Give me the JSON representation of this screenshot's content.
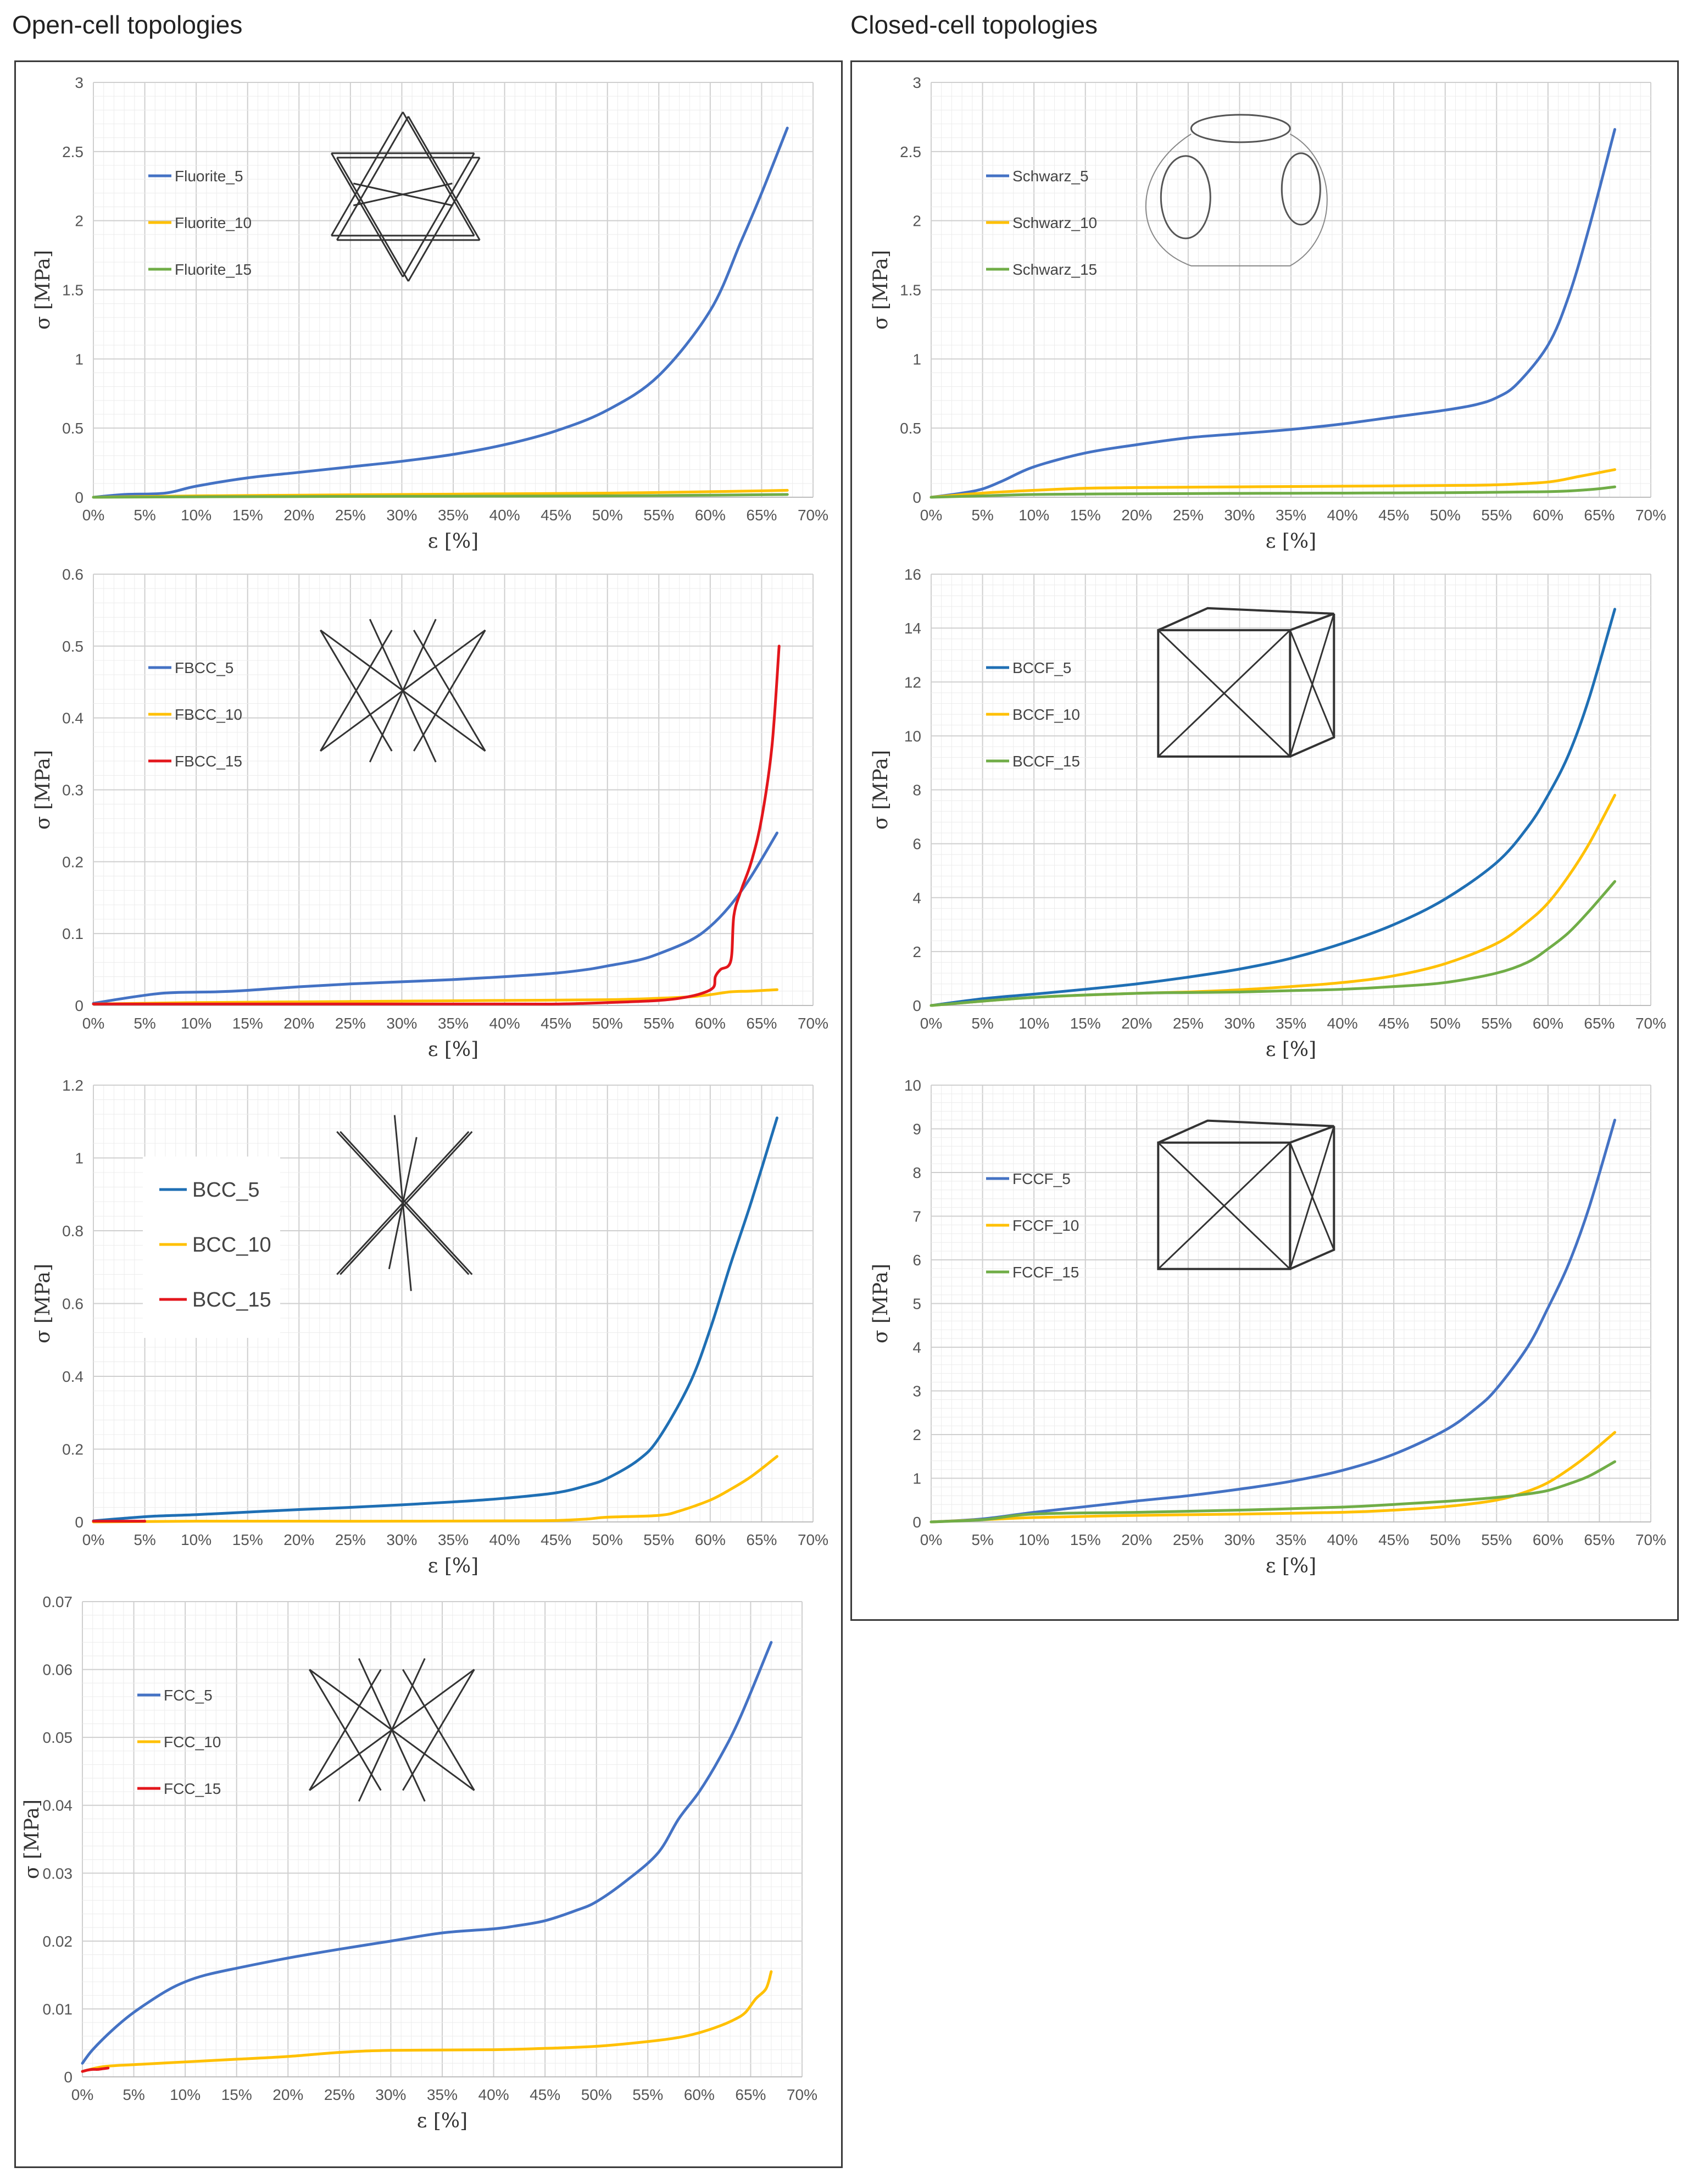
{
  "sections": {
    "open_title": "Open-cell topologies",
    "closed_title": "Closed-cell topologies"
  },
  "colors": {
    "blue": "#4472C4",
    "yellow": "#FFC000",
    "green": "#70AD47",
    "red": "#E3161C",
    "grid": "#e2e2e2"
  },
  "chart_data": [
    {
      "id": "fluorite",
      "type": "line",
      "section": "open",
      "xlabel": "ε [%]",
      "ylabel": "σ [MPa]",
      "xlim": [
        0,
        70
      ],
      "ylim": [
        0,
        3
      ],
      "xticks": [
        "0%",
        "5%",
        "10%",
        "15%",
        "20%",
        "25%",
        "30%",
        "35%",
        "40%",
        "45%",
        "50%",
        "55%",
        "60%",
        "65%",
        "70%"
      ],
      "yticks": [
        "0",
        "0.5",
        "1",
        "1.5",
        "2",
        "2.5",
        "3"
      ],
      "legend_position": "top-left",
      "grid": true,
      "inset": "fluorite-cell",
      "series": [
        {
          "name": "Fluorite_5",
          "color": "#4472C4",
          "x": [
            0,
            3,
            7,
            10,
            15,
            20,
            25,
            30,
            35,
            40,
            45,
            50,
            55,
            60,
            63,
            65,
            67.5
          ],
          "y": [
            0,
            0.02,
            0.03,
            0.08,
            0.14,
            0.18,
            0.22,
            0.26,
            0.31,
            0.38,
            0.48,
            0.63,
            0.88,
            1.35,
            1.85,
            2.2,
            2.67
          ]
        },
        {
          "name": "Fluorite_10",
          "color": "#FFC000",
          "x": [
            0,
            10,
            20,
            30,
            40,
            50,
            60,
            67.5
          ],
          "y": [
            0,
            0.01,
            0.015,
            0.02,
            0.025,
            0.03,
            0.04,
            0.05
          ]
        },
        {
          "name": "Fluorite_15",
          "color": "#70AD47",
          "x": [
            0,
            10,
            20,
            30,
            40,
            50,
            60,
            67.5
          ],
          "y": [
            0,
            0.003,
            0.005,
            0.007,
            0.008,
            0.01,
            0.015,
            0.02
          ]
        }
      ]
    },
    {
      "id": "schwarz",
      "type": "line",
      "section": "closed",
      "xlabel": "ε [%]",
      "ylabel": "σ [MPa]",
      "xlim": [
        0,
        70
      ],
      "ylim": [
        0,
        3
      ],
      "xticks": [
        "0%",
        "5%",
        "10%",
        "15%",
        "20%",
        "25%",
        "30%",
        "35%",
        "40%",
        "45%",
        "50%",
        "55%",
        "60%",
        "65%",
        "70%"
      ],
      "yticks": [
        "0",
        "0.5",
        "1",
        "1.5",
        "2",
        "2.5",
        "3"
      ],
      "legend_position": "top-left",
      "grid": true,
      "inset": "schwarz-cell",
      "series": [
        {
          "name": "Schwarz_5",
          "color": "#4472C4",
          "x": [
            0,
            3,
            5,
            7,
            10,
            15,
            20,
            25,
            30,
            35,
            40,
            45,
            50,
            53,
            55,
            57,
            60,
            62,
            64,
            66.5
          ],
          "y": [
            0,
            0.03,
            0.06,
            0.12,
            0.22,
            0.32,
            0.38,
            0.43,
            0.46,
            0.49,
            0.53,
            0.58,
            0.63,
            0.67,
            0.72,
            0.82,
            1.1,
            1.45,
            1.95,
            2.66
          ]
        },
        {
          "name": "Schwarz_10",
          "color": "#FFC000",
          "x": [
            0,
            5,
            10,
            15,
            20,
            30,
            40,
            50,
            55,
            60,
            63,
            66.5
          ],
          "y": [
            0,
            0.03,
            0.05,
            0.065,
            0.07,
            0.075,
            0.08,
            0.085,
            0.09,
            0.11,
            0.15,
            0.2
          ]
        },
        {
          "name": "Schwarz_15",
          "color": "#70AD47",
          "x": [
            0,
            5,
            10,
            20,
            30,
            40,
            50,
            60,
            64,
            66.5
          ],
          "y": [
            0,
            0.01,
            0.02,
            0.025,
            0.028,
            0.03,
            0.033,
            0.04,
            0.055,
            0.075
          ]
        }
      ]
    },
    {
      "id": "fbcc",
      "type": "line",
      "section": "open",
      "xlabel": "ε [%]",
      "ylabel": "σ [MPa]",
      "xlim": [
        0,
        70
      ],
      "ylim": [
        0,
        0.6
      ],
      "xticks": [
        "0%",
        "5%",
        "10%",
        "15%",
        "20%",
        "25%",
        "30%",
        "35%",
        "40%",
        "45%",
        "50%",
        "55%",
        "60%",
        "65%",
        "70%"
      ],
      "yticks": [
        "0",
        "0.1",
        "0.2",
        "0.3",
        "0.4",
        "0.5",
        "0.6"
      ],
      "legend_position": "top-left",
      "grid": true,
      "inset": "fbcc-cell",
      "series": [
        {
          "name": "FBCC_5",
          "color": "#4472C4",
          "x": [
            0,
            3,
            6,
            8,
            12,
            15,
            20,
            25,
            30,
            35,
            40,
            45,
            48,
            50,
            53,
            55,
            58,
            60,
            62,
            64,
            66.5
          ],
          "y": [
            0.003,
            0.01,
            0.016,
            0.018,
            0.019,
            0.021,
            0.026,
            0.03,
            0.033,
            0.036,
            0.04,
            0.045,
            0.05,
            0.055,
            0.063,
            0.072,
            0.09,
            0.11,
            0.14,
            0.18,
            0.24
          ]
        },
        {
          "name": "FBCC_10",
          "color": "#FFC000",
          "x": [
            0,
            10,
            20,
            30,
            40,
            50,
            55,
            58,
            60,
            62,
            64,
            66.5
          ],
          "y": [
            0.002,
            0.004,
            0.005,
            0.006,
            0.007,
            0.008,
            0.01,
            0.012,
            0.015,
            0.019,
            0.02,
            0.022
          ]
        },
        {
          "name": "FBCC_15",
          "color": "#E3161C",
          "x": [
            0,
            10,
            20,
            30,
            40,
            45,
            48,
            50,
            52,
            55,
            57,
            59,
            60.3,
            60.5,
            61,
            62,
            62.3,
            63,
            64,
            65,
            66,
            66.7
          ],
          "y": [
            0.002,
            0.002,
            0.002,
            0.002,
            0.002,
            0.002,
            0.003,
            0.004,
            0.005,
            0.007,
            0.01,
            0.016,
            0.025,
            0.04,
            0.05,
            0.062,
            0.125,
            0.16,
            0.2,
            0.26,
            0.36,
            0.5
          ]
        }
      ]
    },
    {
      "id": "bccf",
      "type": "line",
      "section": "closed",
      "xlabel": "ε [%]",
      "ylabel": "σ [MPa]",
      "xlim": [
        0,
        70
      ],
      "ylim": [
        0,
        16
      ],
      "xticks": [
        "0%",
        "5%",
        "10%",
        "15%",
        "20%",
        "25%",
        "30%",
        "35%",
        "40%",
        "45%",
        "50%",
        "55%",
        "60%",
        "65%",
        "70%"
      ],
      "yticks": [
        "0",
        "2",
        "4",
        "6",
        "8",
        "10",
        "12",
        "14",
        "16"
      ],
      "legend_position": "top-left",
      "grid": true,
      "inset": "bccf-cell",
      "series": [
        {
          "name": "BCCF_5",
          "color": "#1F6FB4",
          "x": [
            0,
            5,
            10,
            15,
            20,
            25,
            30,
            35,
            40,
            45,
            50,
            55,
            58,
            60,
            62,
            64,
            66.5
          ],
          "y": [
            0,
            0.25,
            0.42,
            0.6,
            0.8,
            1.05,
            1.35,
            1.75,
            2.3,
            3.0,
            3.95,
            5.3,
            6.6,
            7.8,
            9.3,
            11.4,
            14.7
          ]
        },
        {
          "name": "BCCF_10",
          "color": "#FFC000",
          "x": [
            0,
            10,
            20,
            25,
            30,
            35,
            40,
            45,
            50,
            55,
            58,
            60,
            62,
            64,
            66.5
          ],
          "y": [
            0,
            0.3,
            0.45,
            0.5,
            0.58,
            0.7,
            0.85,
            1.1,
            1.55,
            2.3,
            3.1,
            3.8,
            4.8,
            6.0,
            7.8
          ]
        },
        {
          "name": "BCCF_15",
          "color": "#70AD47",
          "x": [
            0,
            10,
            20,
            25,
            30,
            35,
            40,
            45,
            50,
            55,
            58,
            60,
            62,
            64,
            66.5
          ],
          "y": [
            0,
            0.3,
            0.45,
            0.48,
            0.5,
            0.55,
            0.6,
            0.7,
            0.85,
            1.2,
            1.6,
            2.1,
            2.7,
            3.5,
            4.6
          ]
        }
      ]
    },
    {
      "id": "bcc",
      "type": "line",
      "section": "open",
      "xlabel": "ε [%]",
      "ylabel": "σ [MPa]",
      "xlim": [
        0,
        70
      ],
      "ylim": [
        0,
        1.2
      ],
      "xticks": [
        "0%",
        "5%",
        "10%",
        "15%",
        "20%",
        "25%",
        "30%",
        "35%",
        "40%",
        "45%",
        "50%",
        "55%",
        "60%",
        "65%",
        "70%"
      ],
      "yticks": [
        "0",
        "0.2",
        "0.4",
        "0.6",
        "0.8",
        "1",
        "1.2"
      ],
      "legend_position": "top-left",
      "grid": true,
      "inset": "bcc-cell",
      "legend_large": true,
      "series": [
        {
          "name": "BCC_5",
          "color": "#1F6FB4",
          "x": [
            0,
            3,
            6,
            10,
            15,
            20,
            25,
            30,
            35,
            40,
            45,
            48,
            50,
            53,
            55,
            58,
            60,
            62,
            64,
            66.5
          ],
          "y": [
            0.003,
            0.01,
            0.016,
            0.02,
            0.027,
            0.034,
            0.04,
            0.047,
            0.055,
            0.065,
            0.08,
            0.1,
            0.12,
            0.17,
            0.23,
            0.38,
            0.53,
            0.71,
            0.88,
            1.11
          ]
        },
        {
          "name": "BCC_10",
          "color": "#FFC000",
          "x": [
            0,
            10,
            20,
            30,
            40,
            45,
            48,
            50,
            55,
            57,
            60,
            62,
            64,
            66.5
          ],
          "y": [
            0,
            0.002,
            0.002,
            0.002,
            0.003,
            0.004,
            0.008,
            0.013,
            0.018,
            0.03,
            0.06,
            0.09,
            0.125,
            0.18
          ]
        },
        {
          "name": "BCC_15",
          "color": "#E3161C",
          "x": [
            0,
            1,
            2,
            3,
            4,
            5
          ],
          "y": [
            0.002,
            0.002,
            0.002,
            0.002,
            0.002,
            0.002
          ]
        }
      ]
    },
    {
      "id": "fccf",
      "type": "line",
      "section": "closed",
      "xlabel": "ε [%]",
      "ylabel": "σ [MPa]",
      "xlim": [
        0,
        70
      ],
      "ylim": [
        0,
        10
      ],
      "xticks": [
        "0%",
        "5%",
        "10%",
        "15%",
        "20%",
        "25%",
        "30%",
        "35%",
        "40%",
        "45%",
        "50%",
        "55%",
        "60%",
        "65%",
        "70%"
      ],
      "yticks": [
        "0",
        "1",
        "2",
        "3",
        "4",
        "5",
        "6",
        "7",
        "8",
        "9",
        "10"
      ],
      "legend_position": "top-left",
      "grid": true,
      "inset": "fccf-cell",
      "series": [
        {
          "name": "FCCF_5",
          "color": "#4472C4",
          "x": [
            0,
            5,
            10,
            15,
            20,
            25,
            30,
            35,
            40,
            45,
            50,
            53,
            55,
            58,
            60,
            62,
            64,
            66.5
          ],
          "y": [
            0,
            0.07,
            0.22,
            0.35,
            0.48,
            0.6,
            0.75,
            0.93,
            1.18,
            1.55,
            2.1,
            2.6,
            3.05,
            4.0,
            4.9,
            5.9,
            7.2,
            9.2
          ]
        },
        {
          "name": "FCCF_10",
          "color": "#FFC000",
          "x": [
            0,
            5,
            10,
            20,
            30,
            40,
            45,
            50,
            55,
            58,
            60,
            62,
            64,
            66.5
          ],
          "y": [
            0,
            0.05,
            0.1,
            0.15,
            0.18,
            0.22,
            0.27,
            0.35,
            0.5,
            0.7,
            0.9,
            1.2,
            1.55,
            2.05
          ]
        },
        {
          "name": "FCCF_15",
          "color": "#70AD47",
          "x": [
            0,
            5,
            10,
            20,
            30,
            40,
            45,
            50,
            55,
            58,
            60,
            62,
            64,
            66.5
          ],
          "y": [
            0,
            0.05,
            0.18,
            0.22,
            0.27,
            0.34,
            0.4,
            0.47,
            0.56,
            0.64,
            0.72,
            0.87,
            1.05,
            1.38
          ]
        }
      ]
    },
    {
      "id": "fcc",
      "type": "line",
      "section": "open",
      "xlabel": "ε [%]",
      "ylabel": "σ [MPa]",
      "xlim": [
        0,
        70
      ],
      "ylim": [
        0,
        0.07
      ],
      "xticks": [
        "0%",
        "5%",
        "10%",
        "15%",
        "20%",
        "25%",
        "30%",
        "35%",
        "40%",
        "45%",
        "50%",
        "55%",
        "60%",
        "65%",
        "70%"
      ],
      "yticks": [
        "0",
        "0.01",
        "0.02",
        "0.03",
        "0.04",
        "0.05",
        "0.06",
        "0.07"
      ],
      "legend_position": "top-left",
      "grid": true,
      "inset": "fcc-cell",
      "series": [
        {
          "name": "FCC_5",
          "color": "#4472C4",
          "x": [
            0,
            1,
            3,
            5,
            8,
            10,
            12,
            15,
            20,
            25,
            30,
            35,
            40,
            42,
            45,
            48,
            50,
            53,
            56,
            58,
            60,
            62,
            64,
            67
          ],
          "y": [
            0.002,
            0.004,
            0.007,
            0.0095,
            0.0125,
            0.014,
            0.015,
            0.016,
            0.0175,
            0.0188,
            0.02,
            0.0212,
            0.0218,
            0.0222,
            0.023,
            0.0245,
            0.0258,
            0.029,
            0.033,
            0.038,
            0.042,
            0.047,
            0.053,
            0.064
          ]
        },
        {
          "name": "FCC_10",
          "color": "#FFC000",
          "x": [
            0,
            2,
            5,
            10,
            15,
            20,
            25,
            30,
            40,
            45,
            50,
            55,
            58,
            60,
            62,
            63.5,
            64.5,
            65.5,
            66.5,
            67
          ],
          "y": [
            0.0008,
            0.0015,
            0.0018,
            0.0022,
            0.0026,
            0.003,
            0.0036,
            0.0039,
            0.004,
            0.0042,
            0.0045,
            0.0052,
            0.0058,
            0.0065,
            0.0075,
            0.0085,
            0.0095,
            0.0115,
            0.013,
            0.0155
          ]
        },
        {
          "name": "FCC_15",
          "color": "#E3161C",
          "x": [
            0,
            0.5,
            1,
            1.5,
            2,
            2.5
          ],
          "y": [
            0.0008,
            0.001,
            0.0011,
            0.0011,
            0.0012,
            0.0013
          ]
        }
      ]
    }
  ]
}
